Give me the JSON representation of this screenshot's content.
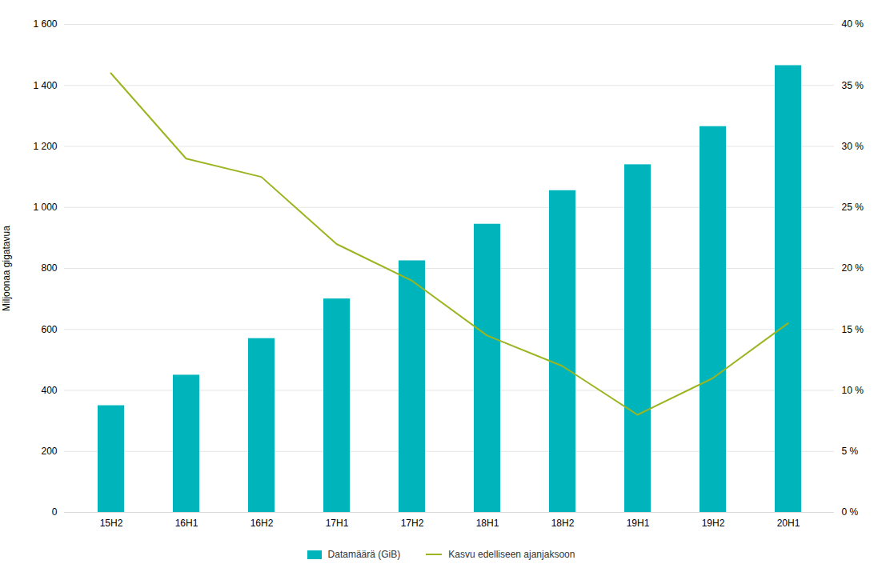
{
  "chart_data": {
    "type": "bar",
    "categories": [
      "15H2",
      "16H1",
      "16H2",
      "17H1",
      "17H2",
      "18H1",
      "18H2",
      "19H1",
      "19H2",
      "20H1"
    ],
    "series": [
      {
        "name": "Datamäärä (GiB)",
        "type": "bar",
        "color": "#00B4BC",
        "values": [
          350,
          450,
          570,
          700,
          825,
          945,
          1055,
          1140,
          1265,
          1465
        ]
      },
      {
        "name": "Kasvu edelliseen ajanjaksoon",
        "type": "line",
        "color": "#9AB520",
        "axis": "y2",
        "values": [
          36,
          29,
          27.5,
          22,
          19,
          14.5,
          12,
          8,
          11,
          15.5
        ]
      }
    ],
    "ylabel": "Miljoonaa gigatavua",
    "ylim": [
      0,
      1600
    ],
    "yticks": [
      0,
      200,
      400,
      600,
      800,
      {
        "value": 1000,
        "label": "1 000"
      },
      {
        "value": 1200,
        "label": "1 200"
      },
      {
        "value": 1400,
        "label": "1 400"
      },
      {
        "value": 1600,
        "label": "1 600"
      }
    ],
    "y2lim": [
      0,
      40
    ],
    "y2ticks": [
      {
        "value": 0,
        "label": "0 %"
      },
      {
        "value": 5,
        "label": "5 %"
      },
      {
        "value": 10,
        "label": "10 %"
      },
      {
        "value": 15,
        "label": "15 %"
      },
      {
        "value": 20,
        "label": "20 %"
      },
      {
        "value": 25,
        "label": "25 %"
      },
      {
        "value": 30,
        "label": "30 %"
      },
      {
        "value": 35,
        "label": "35 %"
      },
      {
        "value": 40,
        "label": "40 %"
      }
    ],
    "grid": true,
    "legend": "bottom"
  }
}
